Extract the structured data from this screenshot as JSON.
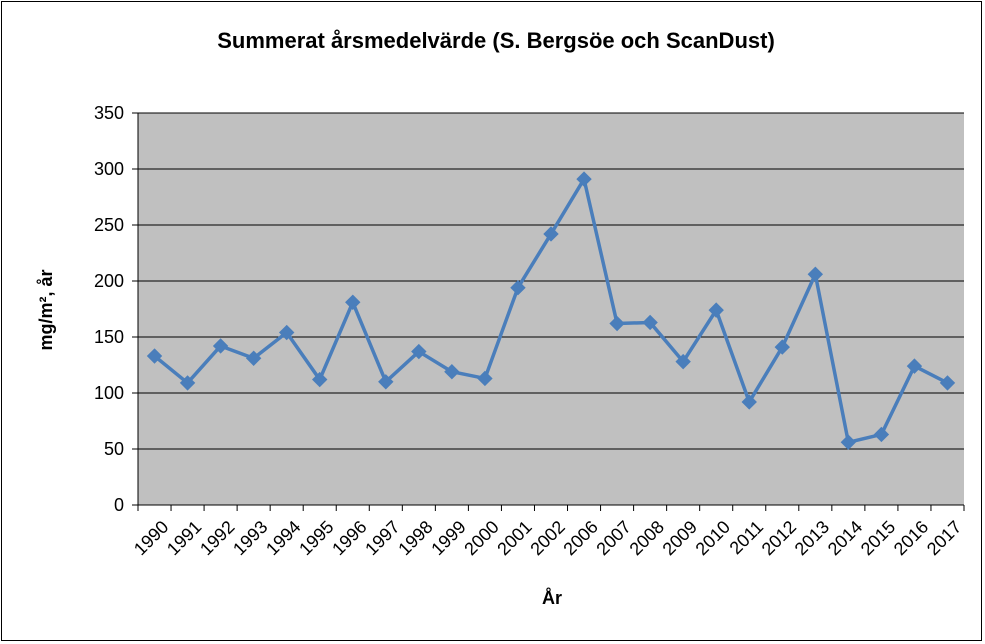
{
  "chart_data": {
    "type": "line",
    "title": "Summerat årsmedelvärde (S. Bergsöe och ScanDust)",
    "xlabel": "År",
    "ylabel": "mg/m², år",
    "ylim": [
      0,
      350
    ],
    "yticks": [
      0,
      50,
      100,
      150,
      200,
      250,
      300,
      350
    ],
    "grid": true,
    "legend": "none",
    "categories": [
      "1990",
      "1991",
      "1992",
      "1993",
      "1994",
      "1995",
      "1996",
      "1997",
      "1998",
      "1999",
      "2000",
      "2001",
      "2002",
      "2006",
      "2007",
      "2008",
      "2009",
      "2010",
      "2011",
      "2012",
      "2013",
      "2014",
      "2015",
      "2016",
      "2017"
    ],
    "series": [
      {
        "values": [
          133,
          109,
          142,
          131,
          154,
          112,
          181,
          110,
          137,
          119,
          113,
          194,
          242,
          291,
          162,
          163,
          128,
          174,
          92,
          141,
          206,
          56,
          63,
          124,
          109
        ]
      }
    ]
  },
  "colors": {
    "plot_background": "#c0c0c0",
    "gridline": "#000000",
    "series_line": "#4a7ebb"
  }
}
